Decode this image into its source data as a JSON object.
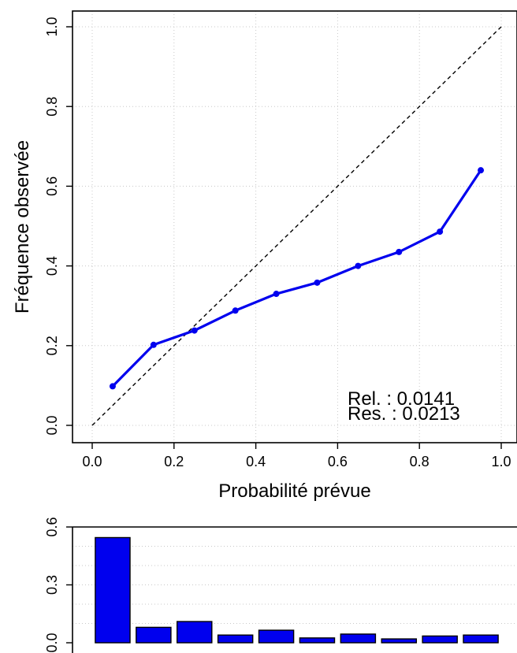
{
  "chart_data": [
    {
      "type": "line",
      "xlabel": "Probabilité prévue",
      "ylabel": "Fréquence observée",
      "xlim": [
        0,
        1
      ],
      "ylim": [
        0,
        1
      ],
      "xticks": [
        "0.0",
        "0.2",
        "0.4",
        "0.6",
        "0.8",
        "1.0"
      ],
      "yticks": [
        "0.0",
        "0.2",
        "0.4",
        "0.6",
        "0.8",
        "1.0"
      ],
      "grid": true,
      "reference_line": "diagonal",
      "series": [
        {
          "x": [
            0.05,
            0.15,
            0.25,
            0.35,
            0.45,
            0.55,
            0.65,
            0.75,
            0.85,
            0.95
          ],
          "y": [
            0.098,
            0.202,
            0.238,
            0.288,
            0.33,
            0.358,
            0.4,
            0.435,
            0.486,
            0.64
          ],
          "color": "#0000ee"
        }
      ],
      "annotations": [
        "Rel. : 0.0141",
        "Res. : 0.0213"
      ]
    },
    {
      "type": "bar",
      "ylim": [
        0,
        0.6
      ],
      "yticks": [
        "0.0",
        "0.3",
        "0.6"
      ],
      "grid": true,
      "x_centers": [
        0.05,
        0.15,
        0.25,
        0.35,
        0.45,
        0.55,
        0.65,
        0.75,
        0.85,
        0.95
      ],
      "values": [
        0.545,
        0.08,
        0.11,
        0.04,
        0.065,
        0.025,
        0.045,
        0.02,
        0.035,
        0.04
      ],
      "color": "#0000ee"
    }
  ]
}
